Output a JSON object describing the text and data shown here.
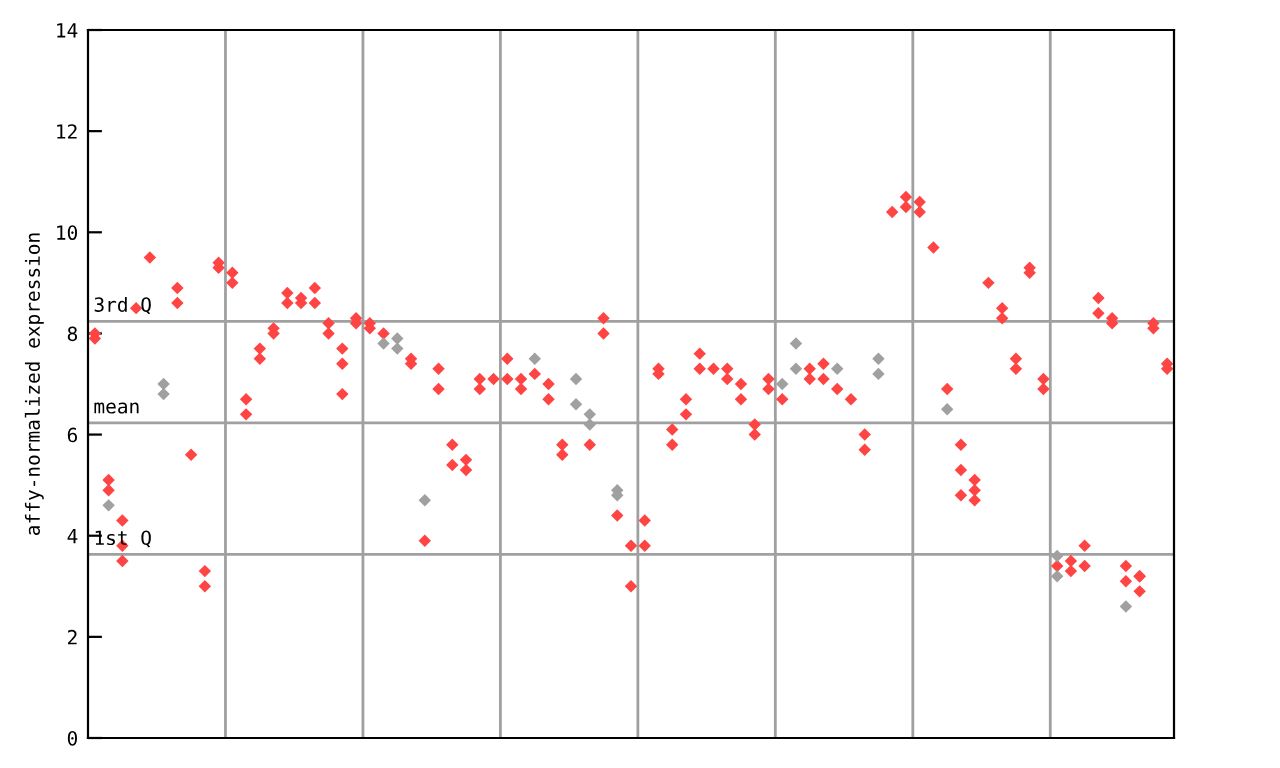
{
  "chart_data": {
    "type": "scatter",
    "ylabel": "affy-normalized expression",
    "categories": [
      null,
      null,
      null,
      null,
      null,
      null,
      null,
      null,
      null,
      null,
      null,
      null,
      null,
      null,
      null,
      null,
      null,
      null,
      null,
      null,
      null,
      null,
      null,
      null,
      null,
      null,
      null,
      null,
      null,
      null,
      null,
      null,
      null,
      null,
      null,
      null,
      null,
      null,
      null,
      null,
      null,
      null,
      null,
      null,
      null,
      null,
      null,
      null,
      null,
      null,
      null,
      null,
      null,
      null,
      null,
      null,
      null,
      null,
      null,
      null,
      null,
      null,
      null,
      null,
      null,
      null,
      null,
      null,
      null,
      null,
      null,
      null,
      null,
      null,
      null,
      null,
      null,
      null,
      null
    ],
    "ylim": [
      0,
      14
    ],
    "yticks": [
      0,
      2,
      4,
      6,
      8,
      10,
      12,
      14
    ],
    "tick_labels": "y",
    "marker": "diamond",
    "ref_lines": [
      {
        "axis": "y",
        "value": 8.24,
        "label": "3rd Q",
        "color": "#a0a0a0"
      },
      {
        "axis": "y",
        "value": 6.23,
        "label": "mean",
        "color": "#a0a0a0"
      },
      {
        "axis": "y",
        "value": 3.63,
        "label": "1st Q",
        "color": "#a0a0a0"
      }
    ],
    "series": [
      {
        "color": "#ff4444",
        "values": [
          8.0,
          5.1,
          4.3,
          8.5,
          9.5,
          null,
          8.9,
          5.6,
          3.3,
          9.4,
          9.2,
          6.7,
          7.7,
          8.1,
          8.8,
          8.7,
          8.9,
          8.2,
          7.7,
          8.3,
          8.2,
          8.0,
          null,
          7.5,
          3.9,
          7.3,
          5.8,
          5.5,
          7.1,
          7.1,
          7.5,
          7.1,
          7.2,
          7.0,
          5.8,
          null,
          5.8,
          8.3,
          4.4,
          3.8,
          4.3,
          7.3,
          6.1,
          6.7,
          7.6,
          7.3,
          7.3,
          7.0,
          6.2,
          7.1,
          6.7,
          null,
          7.3,
          7.4,
          6.9,
          6.7,
          6.0,
          null,
          10.4,
          10.7,
          10.6,
          9.7,
          6.9,
          5.8,
          5.1,
          9.0,
          8.5,
          7.5,
          9.3,
          7.1,
          3.4,
          3.5,
          3.8,
          8.7,
          8.3,
          3.4,
          3.2,
          8.2,
          7.4
        ]
      },
      {
        "color": "#ff4444",
        "values": [
          7.9,
          4.9,
          3.8,
          null,
          null,
          null,
          8.6,
          null,
          3.0,
          9.3,
          9.0,
          6.4,
          7.5,
          8.0,
          8.6,
          8.6,
          8.6,
          8.0,
          7.4,
          8.2,
          8.1,
          null,
          null,
          7.4,
          null,
          6.9,
          5.4,
          5.3,
          6.9,
          null,
          7.1,
          6.9,
          null,
          6.7,
          5.6,
          null,
          null,
          8.0,
          null,
          3.0,
          3.8,
          7.2,
          5.8,
          6.4,
          7.3,
          null,
          7.1,
          6.7,
          6.0,
          6.9,
          null,
          null,
          7.1,
          7.1,
          null,
          null,
          5.7,
          null,
          null,
          10.5,
          10.4,
          null,
          null,
          5.3,
          4.9,
          null,
          8.3,
          7.3,
          9.2,
          6.9,
          null,
          3.3,
          3.4,
          8.4,
          8.2,
          3.1,
          3.2,
          8.1,
          7.3
        ]
      },
      {
        "color": "#ff4444",
        "values": [
          null,
          null,
          3.5,
          null,
          null,
          null,
          null,
          null,
          null,
          null,
          null,
          null,
          null,
          null,
          null,
          null,
          null,
          null,
          6.8,
          null,
          null,
          null,
          null,
          null,
          null,
          null,
          null,
          null,
          null,
          null,
          null,
          null,
          null,
          null,
          null,
          null,
          null,
          null,
          null,
          null,
          null,
          null,
          null,
          null,
          null,
          null,
          null,
          null,
          null,
          null,
          null,
          null,
          null,
          null,
          null,
          null,
          null,
          null,
          null,
          null,
          null,
          null,
          null,
          4.8,
          4.7,
          null,
          null,
          null,
          null,
          null,
          null,
          null,
          null,
          null,
          null,
          null,
          2.9,
          null,
          null
        ]
      },
      {
        "color": "#a0a0a0",
        "values": [
          null,
          4.6,
          null,
          null,
          null,
          7.0,
          null,
          null,
          null,
          null,
          null,
          null,
          null,
          null,
          null,
          null,
          null,
          null,
          null,
          null,
          null,
          7.8,
          7.9,
          null,
          4.7,
          null,
          null,
          null,
          null,
          null,
          null,
          null,
          7.5,
          null,
          null,
          7.1,
          6.4,
          null,
          4.9,
          null,
          null,
          null,
          null,
          null,
          null,
          null,
          null,
          null,
          null,
          null,
          7.0,
          7.8,
          null,
          null,
          7.3,
          null,
          null,
          7.5,
          null,
          null,
          null,
          null,
          6.5,
          null,
          null,
          null,
          null,
          null,
          null,
          null,
          3.6,
          null,
          null,
          null,
          null,
          2.6,
          null,
          null,
          null
        ]
      },
      {
        "color": "#a0a0a0",
        "values": [
          null,
          null,
          null,
          null,
          null,
          6.8,
          null,
          null,
          null,
          null,
          null,
          null,
          null,
          null,
          null,
          null,
          null,
          null,
          null,
          null,
          null,
          null,
          7.7,
          null,
          null,
          null,
          null,
          null,
          null,
          null,
          null,
          null,
          null,
          null,
          null,
          6.6,
          6.2,
          null,
          4.8,
          null,
          null,
          null,
          null,
          null,
          null,
          null,
          null,
          null,
          null,
          null,
          null,
          7.3,
          null,
          null,
          null,
          null,
          null,
          7.2,
          null,
          null,
          null,
          null,
          null,
          null,
          null,
          null,
          null,
          null,
          null,
          null,
          3.2,
          null,
          null,
          null,
          null,
          null,
          null,
          null,
          null
        ]
      }
    ]
  }
}
